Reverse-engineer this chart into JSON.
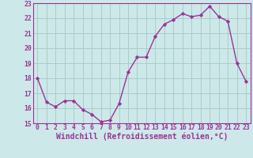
{
  "x": [
    0,
    1,
    2,
    3,
    4,
    5,
    6,
    7,
    8,
    9,
    10,
    11,
    12,
    13,
    14,
    15,
    16,
    17,
    18,
    19,
    20,
    21,
    22,
    23
  ],
  "y": [
    18.0,
    16.4,
    16.1,
    16.5,
    16.5,
    15.9,
    15.6,
    15.1,
    15.2,
    16.3,
    18.4,
    19.4,
    19.4,
    20.8,
    21.6,
    21.9,
    22.3,
    22.1,
    22.2,
    22.8,
    22.1,
    21.8,
    19.0,
    17.8
  ],
  "ylim": [
    15,
    23
  ],
  "xlim": [
    -0.5,
    23.5
  ],
  "yticks": [
    15,
    16,
    17,
    18,
    19,
    20,
    21,
    22,
    23
  ],
  "xticks": [
    0,
    1,
    2,
    3,
    4,
    5,
    6,
    7,
    8,
    9,
    10,
    11,
    12,
    13,
    14,
    15,
    16,
    17,
    18,
    19,
    20,
    21,
    22,
    23
  ],
  "xlabel": "Windchill (Refroidissement éolien,°C)",
  "line_color": "#993399",
  "marker": "D",
  "marker_size": 2.2,
  "line_width": 1.0,
  "bg_color": "#cde8e8",
  "grid_color": "#aacccc",
  "tick_color": "#993399",
  "label_color": "#993399",
  "tick_fontsize": 5.8,
  "xlabel_fontsize": 7.0
}
